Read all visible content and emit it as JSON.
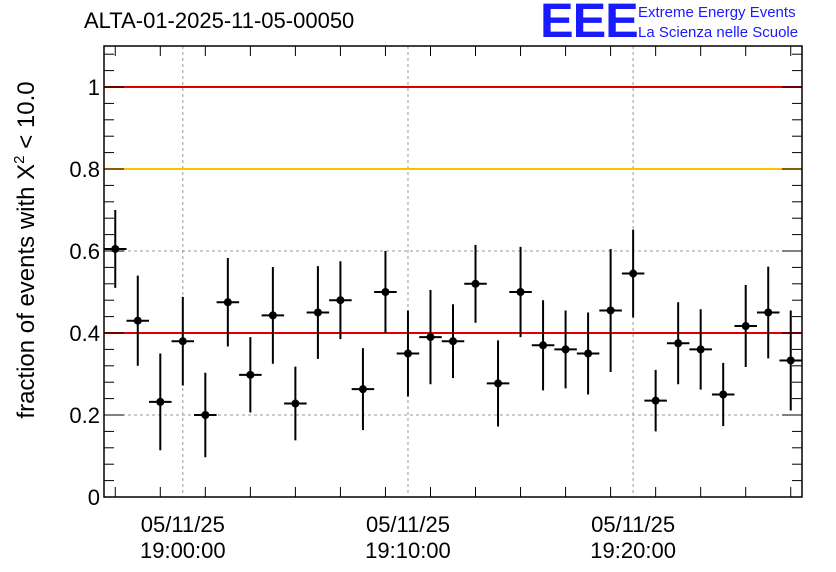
{
  "title": "ALTA-01-2025-11-05-00050",
  "logo": {
    "mark": "EEE",
    "line1": "Extreme Energy Events",
    "line2": "La Scienza nelle Scuole",
    "color": "#1a1aff"
  },
  "chart_data": {
    "type": "scatter",
    "ylabel_main": "fraction of events with Χ",
    "ylabel_sup": "2",
    "ylabel_tail": " < 10.0",
    "ylim": [
      0,
      1.1
    ],
    "yticks": [
      0,
      0.2,
      0.4,
      0.6,
      0.8,
      1
    ],
    "ytick_labels": [
      "0",
      "0.2",
      "0.4",
      "0.6",
      "0.8",
      "1"
    ],
    "xlim_minutes": [
      -3.5,
      27.5
    ],
    "xticks": [
      {
        "minute": 0,
        "date": "05/11/25",
        "time": "19:00:00"
      },
      {
        "minute": 10,
        "date": "05/11/25",
        "time": "19:10:00"
      },
      {
        "minute": 20,
        "date": "05/11/25",
        "time": "19:20:00"
      }
    ],
    "grid": true,
    "reference_lines": [
      {
        "y": 1.0,
        "color": "#e00000"
      },
      {
        "y": 0.8,
        "color": "#ffbf00"
      },
      {
        "y": 0.4,
        "color": "#e00000"
      }
    ],
    "marker_color": "#000000",
    "points": [
      {
        "x": -3.0,
        "y": 0.605,
        "yerr": 0.095
      },
      {
        "x": -2.0,
        "y": 0.43,
        "yerr": 0.11
      },
      {
        "x": -1.0,
        "y": 0.232,
        "yerr": 0.118
      },
      {
        "x": 0.0,
        "y": 0.38,
        "yerr": 0.108
      },
      {
        "x": 1.0,
        "y": 0.2,
        "yerr": 0.103
      },
      {
        "x": 2.0,
        "y": 0.475,
        "yerr": 0.108
      },
      {
        "x": 3.0,
        "y": 0.298,
        "yerr": 0.092
      },
      {
        "x": 4.0,
        "y": 0.443,
        "yerr": 0.118
      },
      {
        "x": 5.0,
        "y": 0.228,
        "yerr": 0.09
      },
      {
        "x": 6.0,
        "y": 0.45,
        "yerr": 0.113
      },
      {
        "x": 7.0,
        "y": 0.48,
        "yerr": 0.095
      },
      {
        "x": 8.0,
        "y": 0.263,
        "yerr": 0.1
      },
      {
        "x": 9.0,
        "y": 0.5,
        "yerr": 0.1
      },
      {
        "x": 10.0,
        "y": 0.35,
        "yerr": 0.105
      },
      {
        "x": 11.0,
        "y": 0.39,
        "yerr": 0.115
      },
      {
        "x": 12.0,
        "y": 0.38,
        "yerr": 0.09
      },
      {
        "x": 13.0,
        "y": 0.52,
        "yerr": 0.095
      },
      {
        "x": 14.0,
        "y": 0.277,
        "yerr": 0.105
      },
      {
        "x": 15.0,
        "y": 0.5,
        "yerr": 0.11
      },
      {
        "x": 16.0,
        "y": 0.37,
        "yerr": 0.11
      },
      {
        "x": 17.0,
        "y": 0.36,
        "yerr": 0.095
      },
      {
        "x": 18.0,
        "y": 0.35,
        "yerr": 0.1
      },
      {
        "x": 19.0,
        "y": 0.455,
        "yerr": 0.15
      },
      {
        "x": 20.0,
        "y": 0.545,
        "yerr": 0.107
      },
      {
        "x": 21.0,
        "y": 0.235,
        "yerr": 0.075
      },
      {
        "x": 22.0,
        "y": 0.375,
        "yerr": 0.1
      },
      {
        "x": 23.0,
        "y": 0.36,
        "yerr": 0.098
      },
      {
        "x": 24.0,
        "y": 0.25,
        "yerr": 0.077
      },
      {
        "x": 25.0,
        "y": 0.417,
        "yerr": 0.1
      },
      {
        "x": 26.0,
        "y": 0.45,
        "yerr": 0.112
      },
      {
        "x": 27.0,
        "y": 0.333,
        "yerr": 0.122
      }
    ]
  }
}
